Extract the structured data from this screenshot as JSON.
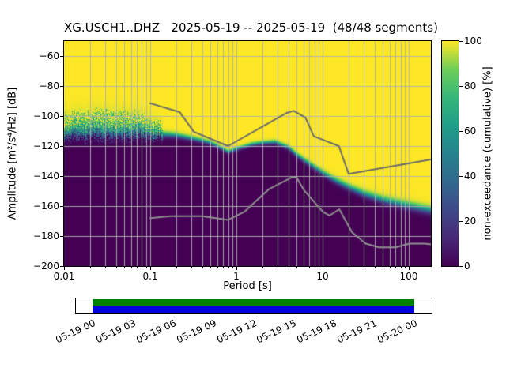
{
  "title": "XG.USCH1..DHZ   2025-05-19 -- 2025-05-19  (48/48 segments)",
  "station": "XG.USCH1..DHZ",
  "date_range": "2025-05-19 -- 2025-05-19",
  "segments": "48/48 segments",
  "axes": {
    "xlabel": "Period [s]",
    "ylabel": "Amplitude [m²/s⁴/Hz] [dB]",
    "x_ticks": [
      {
        "value": 0.01,
        "label": "0.01"
      },
      {
        "value": 0.1,
        "label": "0.1"
      },
      {
        "value": 1,
        "label": "1"
      },
      {
        "value": 10,
        "label": "10"
      },
      {
        "value": 100,
        "label": "100"
      }
    ],
    "y_ticks": [
      {
        "value": -60,
        "label": "−60"
      },
      {
        "value": -80,
        "label": "−80"
      },
      {
        "value": -100,
        "label": "−100"
      },
      {
        "value": -120,
        "label": "−120"
      },
      {
        "value": -140,
        "label": "−140"
      },
      {
        "value": -160,
        "label": "−160"
      },
      {
        "value": -180,
        "label": "−180"
      },
      {
        "value": -200,
        "label": "−200"
      }
    ],
    "grid_color": "#b0b0b0"
  },
  "colorbar": {
    "label": "non-exceedance (cumulative) [%]",
    "ticks": [
      0,
      20,
      40,
      60,
      80,
      100
    ],
    "stops": [
      {
        "t": 0.0,
        "color": "#440154"
      },
      {
        "t": 0.125,
        "color": "#482878"
      },
      {
        "t": 0.25,
        "color": "#3e4a89"
      },
      {
        "t": 0.375,
        "color": "#31688e"
      },
      {
        "t": 0.5,
        "color": "#26828e"
      },
      {
        "t": 0.625,
        "color": "#1f9e89"
      },
      {
        "t": 0.75,
        "color": "#35b779"
      },
      {
        "t": 0.875,
        "color": "#6ece58"
      },
      {
        "t": 1.0,
        "color": "#fde725"
      }
    ]
  },
  "chart_data": {
    "type": "heatmap",
    "title": "XG.USCH1..DHZ   2025-05-19 -- 2025-05-19  (48/48 segments)",
    "x_axis": {
      "label": "Period [s]",
      "scale": "log",
      "range": [
        0.01,
        180
      ]
    },
    "y_axis": {
      "label": "Amplitude [m²/s⁴/Hz] [dB]",
      "range": [
        -200,
        -50
      ],
      "tick_step": 20
    },
    "color_axis": {
      "label": "non-exceedance (cumulative) [%]",
      "range": [
        0,
        100
      ],
      "colormap": "viridis"
    },
    "median_curve": {
      "periods": [
        0.01,
        0.015,
        0.02,
        0.03,
        0.05,
        0.08,
        0.1,
        0.15,
        0.2,
        0.3,
        0.4,
        0.5,
        0.6,
        0.8,
        1.0,
        1.5,
        2.0,
        2.8,
        4.0,
        5.0,
        7.0,
        10,
        14,
        20,
        30,
        50,
        70,
        100,
        180
      ],
      "db": [
        -112,
        -110.5,
        -110.5,
        -110,
        -110,
        -111,
        -112,
        -112.5,
        -113,
        -115,
        -116.5,
        -118,
        -120,
        -124,
        -122,
        -119,
        -118,
        -117.5,
        -121,
        -126,
        -132,
        -138,
        -143,
        -147.5,
        -152,
        -156,
        -158,
        -160,
        -163
      ]
    },
    "spread_curve": {
      "periods": [
        0.01,
        0.03,
        0.08,
        0.15,
        0.3,
        0.8,
        2,
        5,
        10,
        30,
        100,
        180
      ],
      "db": [
        3.0,
        3.5,
        3.0,
        1.8,
        1.5,
        1.2,
        1.2,
        1.5,
        1.8,
        2.2,
        2.5,
        2.5
      ]
    },
    "speckle": {
      "log_period_max": -0.85,
      "column_jitter_db": 2.0,
      "upper_tail_factor": 2.2,
      "noise": 0.55
    },
    "noise_models": {
      "nhnm": {
        "name": "high noise model",
        "color": "#6b6b6b",
        "periods": [
          0.1,
          0.22,
          0.32,
          0.8,
          3.8,
          4.6,
          6.3,
          7.9,
          15.4,
          20,
          180
        ],
        "db": [
          -91.5,
          -97.4,
          -110.5,
          -120,
          -98,
          -96.5,
          -101,
          -113.5,
          -120,
          -138.5,
          -128.9
        ]
      },
      "nlnm": {
        "name": "low noise model",
        "color": "#8f8f8f",
        "periods": [
          0.1,
          0.17,
          0.4,
          0.8,
          1.24,
          2.4,
          4.3,
          5,
          6,
          10,
          12,
          15.6,
          21.9,
          31.6,
          45,
          70,
          101,
          154,
          180
        ],
        "db": [
          -168,
          -166.7,
          -166.7,
          -169.2,
          -163.7,
          -148.6,
          -141.1,
          -141.1,
          -149,
          -163.8,
          -166.3,
          -162.1,
          -177.5,
          -185,
          -187.5,
          -187.5,
          -185,
          -185,
          -185.5
        ]
      }
    }
  },
  "timeline": {
    "labels": [
      "05-19 00",
      "05-19 03",
      "05-19 06",
      "05-19 09",
      "05-19 12",
      "05-19 15",
      "05-19 18",
      "05-19 21",
      "05-20 00"
    ],
    "coverage_color": "#008000",
    "segment_color": "#0000dd"
  }
}
